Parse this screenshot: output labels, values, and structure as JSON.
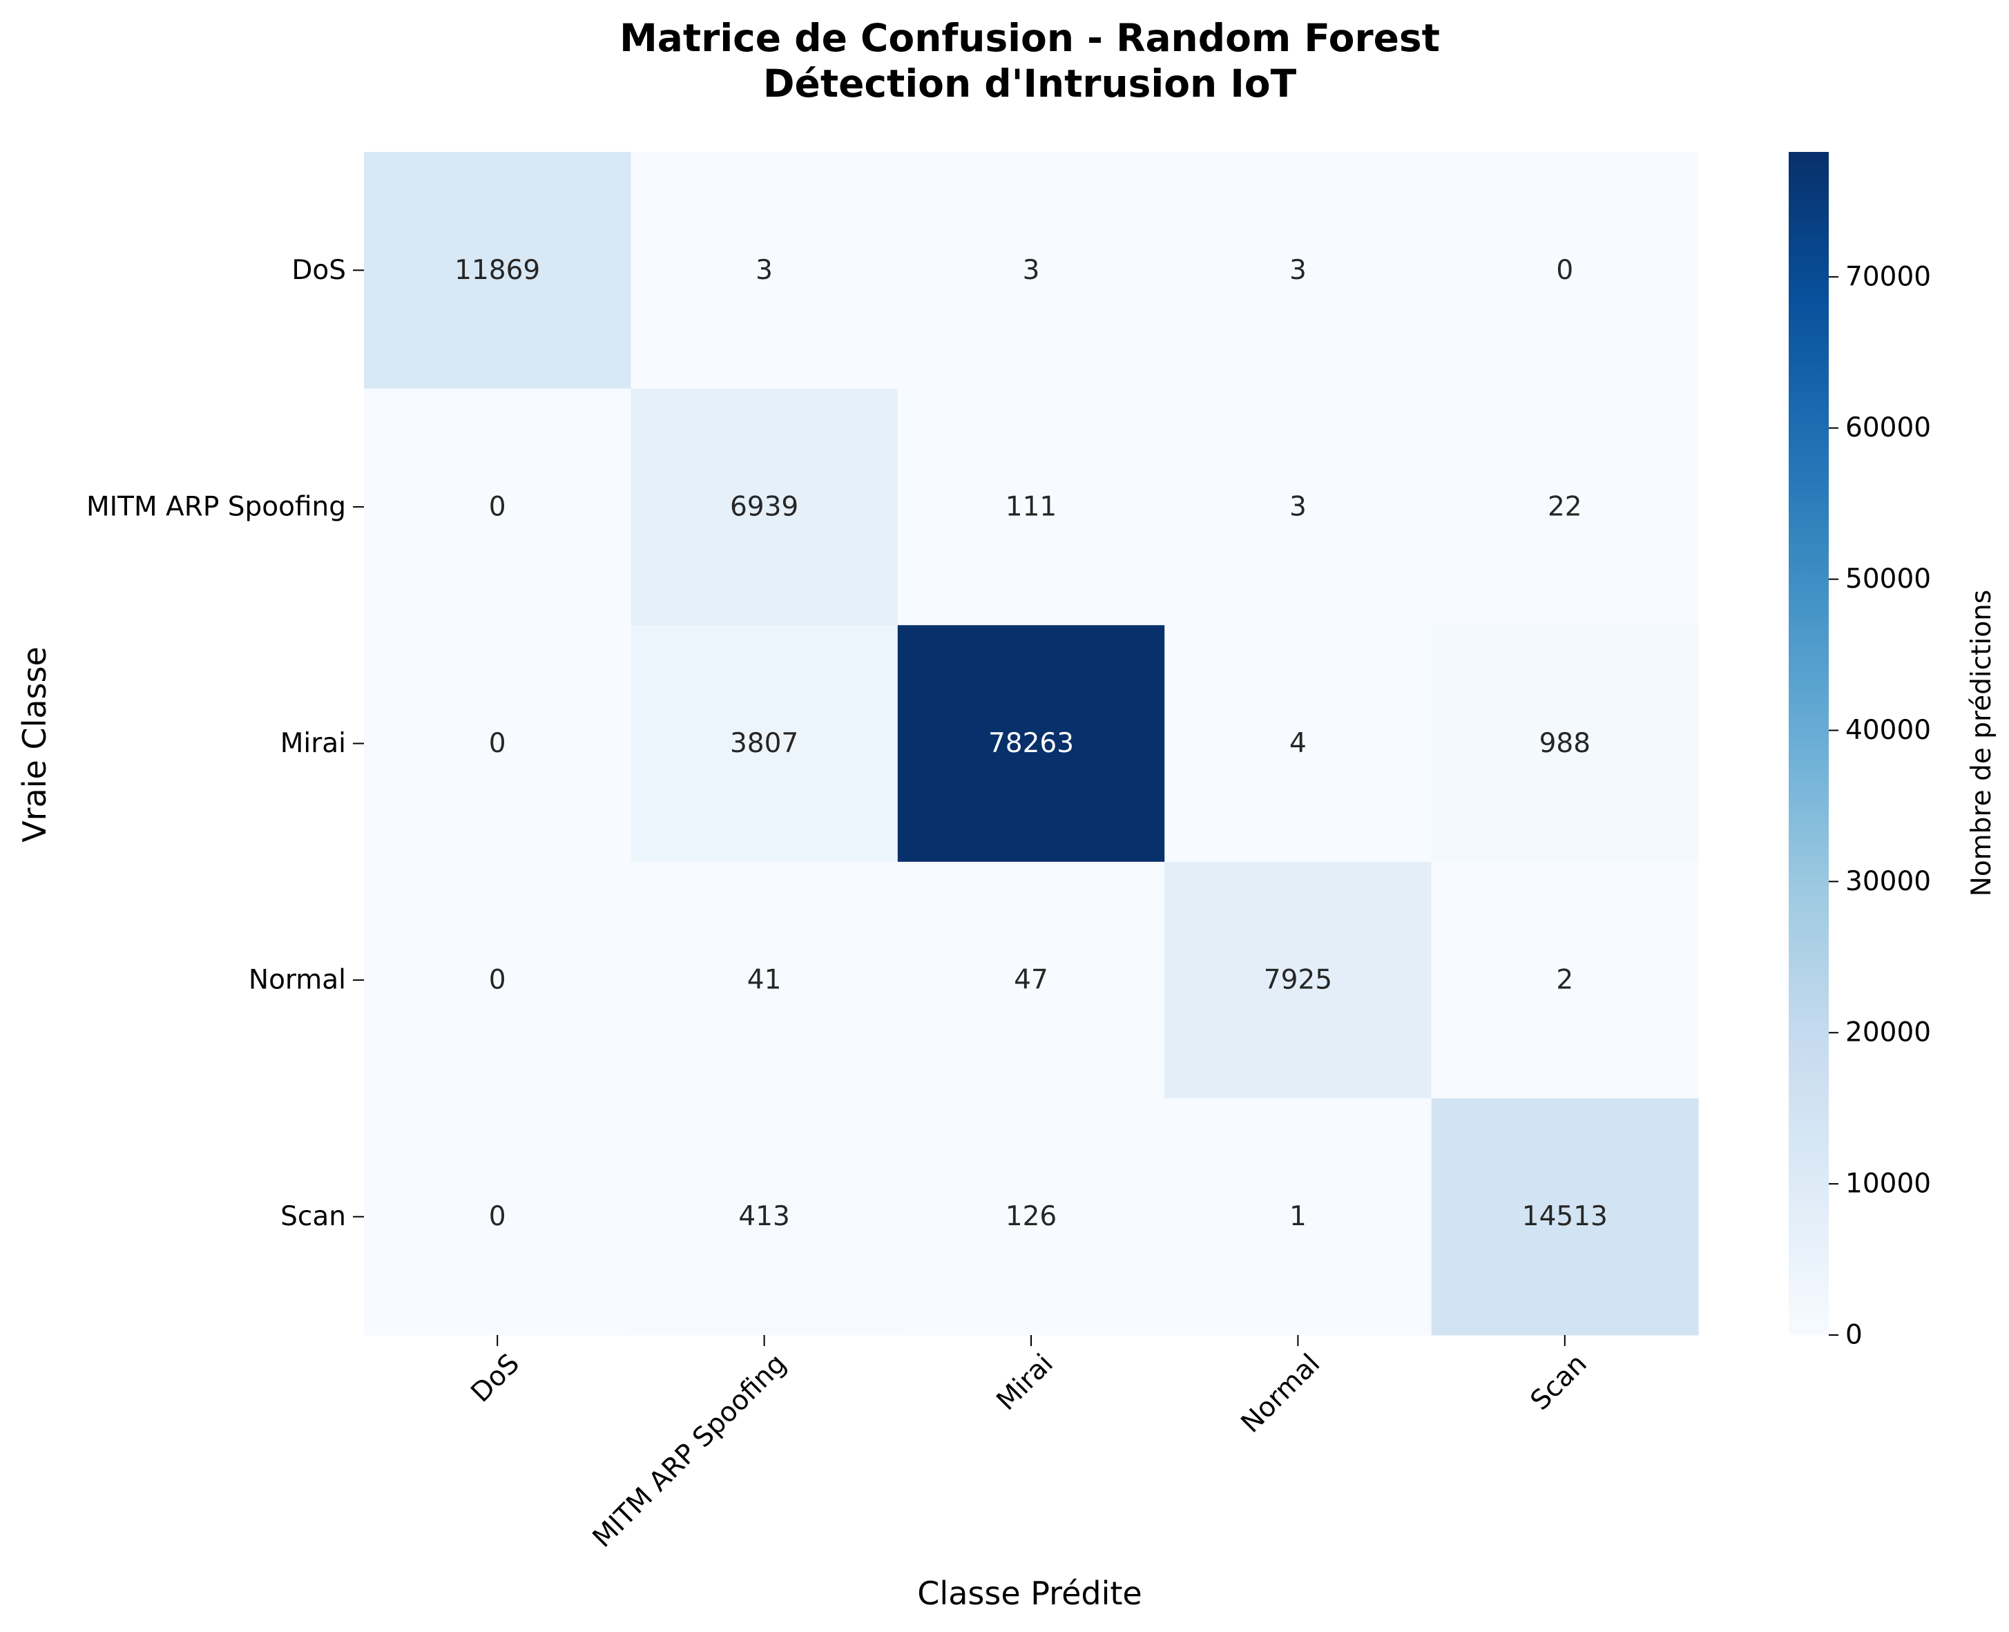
{
  "chart_data": {
    "type": "heatmap",
    "title_line1": "Matrice de Confusion - Random Forest",
    "title_line2": "Détection d'Intrusion IoT",
    "xlabel": "Classe Prédite",
    "ylabel": "Vraie Classe",
    "row_labels": [
      "DoS",
      "MITM ARP Spoofing",
      "Mirai",
      "Normal",
      "Scan"
    ],
    "col_labels": [
      "DoS",
      "MITM ARP Spoofing",
      "Mirai",
      "Normal",
      "Scan"
    ],
    "values": [
      [
        11869,
        3,
        3,
        3,
        0
      ],
      [
        0,
        6939,
        111,
        3,
        22
      ],
      [
        0,
        3807,
        78263,
        4,
        988
      ],
      [
        0,
        41,
        47,
        7925,
        2
      ],
      [
        0,
        413,
        126,
        1,
        14513
      ]
    ],
    "colorbar": {
      "label": "Nombre de prédictions",
      "min": 0,
      "max": 78263,
      "ticks": [
        0,
        10000,
        20000,
        30000,
        40000,
        50000,
        60000,
        70000
      ],
      "tick_labels": [
        "0",
        "10000",
        "20000",
        "30000",
        "40000",
        "50000",
        "60000",
        "70000"
      ],
      "colormap": "Blues",
      "colors": [
        "#f7fbff",
        "#deebf7",
        "#c6dbef",
        "#9ecae1",
        "#6baed6",
        "#4292c6",
        "#2171b5",
        "#08519c",
        "#08306b"
      ]
    }
  }
}
